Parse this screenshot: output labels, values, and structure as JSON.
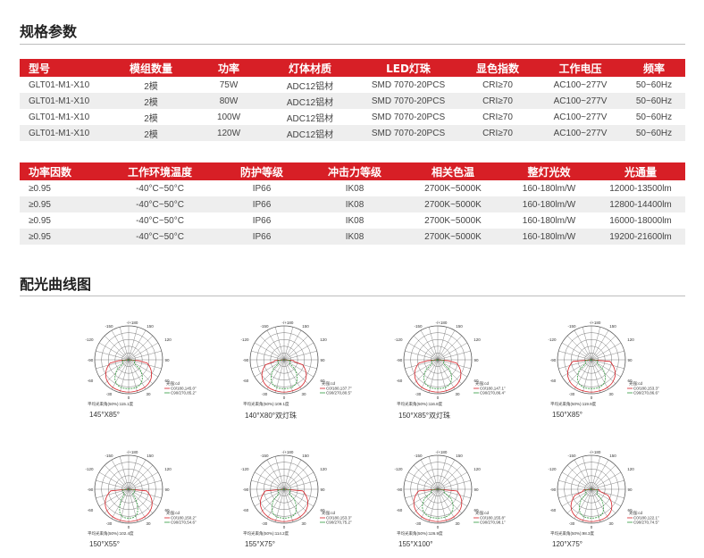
{
  "specs": {
    "title": "规格参数",
    "table1": {
      "headers": [
        "型号",
        "模组数量",
        "功率",
        "灯体材质",
        "LED灯珠",
        "显色指数",
        "工作电压",
        "频率"
      ],
      "rows": [
        [
          "GLT01-M1-X10",
          "2模",
          "75W",
          "ADC12铝材",
          "SMD 7070-20PCS",
          "CRI≥70",
          "AC100~277V",
          "50~60Hz"
        ],
        [
          "GLT01-M1-X10",
          "2模",
          "80W",
          "ADC12铝材",
          "SMD 7070-20PCS",
          "CRI≥70",
          "AC100~277V",
          "50~60Hz"
        ],
        [
          "GLT01-M1-X10",
          "2模",
          "100W",
          "ADC12铝材",
          "SMD 7070-20PCS",
          "CRI≥70",
          "AC100~277V",
          "50~60Hz"
        ],
        [
          "GLT01-M1-X10",
          "2模",
          "120W",
          "ADC12铝材",
          "SMD 7070-20PCS",
          "CRI≥70",
          "AC100~277V",
          "50~60Hz"
        ]
      ]
    },
    "table2": {
      "headers": [
        "功率因数",
        "工作环境温度",
        "防护等级",
        "冲击力等级",
        "相关色温",
        "整灯光效",
        "光通量"
      ],
      "rows": [
        [
          "≥0.95",
          "-40°C~50°C",
          "IP66",
          "IK08",
          "2700K~5000K",
          "160-180lm/W",
          "12000-13500lm"
        ],
        [
          "≥0.95",
          "-40°C~50°C",
          "IP66",
          "IK08",
          "2700K~5000K",
          "160-180lm/W",
          "12800-14400lm"
        ],
        [
          "≥0.95",
          "-40°C~50°C",
          "IP66",
          "IK08",
          "2700K~5000K",
          "160-180lm/W",
          "16000-18000lm"
        ],
        [
          "≥0.95",
          "-40°C~50°C",
          "IP66",
          "IK08",
          "2700K~5000K",
          "160-180lm/W",
          "19200-21600lm"
        ]
      ]
    }
  },
  "light_curves": {
    "title": "配光曲线图",
    "axis_labels": {
      "top": "-/+180",
      "ul": "-150",
      "ur": "150",
      "l1": "-120",
      "r1": "120",
      "l2": "-90",
      "r2": "90",
      "l3": "-60",
      "r3": "60",
      "bl": "-30",
      "bottom": "0",
      "br": "30"
    },
    "unit_label": "光强:cd",
    "items": [
      {
        "legend_c0": "C0/180,145.0°",
        "legend_c90": "C90/270,85.2°",
        "avg": "平均光束角(50%):115.1度",
        "caption": "145°X85°"
      },
      {
        "legend_c0": "C0/180,137.7°",
        "legend_c90": "C90/270,80.5°",
        "avg": "平均光束角(50%):109.1度",
        "caption": "140°X80°双灯珠"
      },
      {
        "legend_c0": "C0/180,147.1°",
        "legend_c90": "C90/270,86.4°",
        "avg": "平均光束角(50%):116.8度",
        "caption": "150°X85°双灯珠"
      },
      {
        "legend_c0": "C0/180,153.3°",
        "legend_c90": "C90/270,86.6°",
        "avg": "平均光束角(50%):119.9度",
        "caption": "150°X85°"
      },
      {
        "legend_c0": "C0/180,150.2°",
        "legend_c90": "C90/270,54.6°",
        "avg": "平均光束角(50%):102.4度",
        "caption": "150°X55°"
      },
      {
        "legend_c0": "C0/180,153.3°",
        "legend_c90": "C90/270,75.2°",
        "avg": "平均光束角(50%):114.2度",
        "caption": "155°X75°"
      },
      {
        "legend_c0": "C0/180,155.8°",
        "legend_c90": "C90/270,98.1°",
        "avg": "平均光束角(50%):126.9度",
        "caption": "155°X100°"
      },
      {
        "legend_c0": "C0/180,122.1°",
        "legend_c90": "C90/270,74.5°",
        "avg": "平均光束角(50%):98.3度",
        "caption": "120°X75°"
      }
    ],
    "colors": {
      "c0": "#d71f26",
      "c90": "#2e9a3c",
      "grid": "#555555"
    }
  }
}
